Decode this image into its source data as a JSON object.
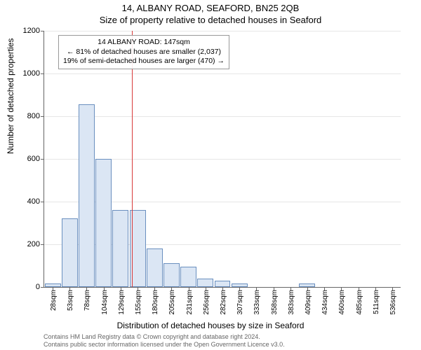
{
  "titles": {
    "address": "14, ALBANY ROAD, SEAFORD, BN25 2QB",
    "subtitle": "Size of property relative to detached houses in Seaford"
  },
  "axis": {
    "ylabel": "Number of detached properties",
    "xlabel": "Distribution of detached houses by size in Seaford",
    "ylim": [
      0,
      1200
    ],
    "yticks": [
      0,
      200,
      400,
      600,
      800,
      1000,
      1200
    ],
    "grid_color": "#e6e6e6",
    "axis_color": "#666666",
    "xticks": [
      "28sqm",
      "53sqm",
      "78sqm",
      "104sqm",
      "129sqm",
      "155sqm",
      "180sqm",
      "205sqm",
      "231sqm",
      "256sqm",
      "282sqm",
      "307sqm",
      "333sqm",
      "358sqm",
      "383sqm",
      "409sqm",
      "434sqm",
      "460sqm",
      "485sqm",
      "511sqm",
      "536sqm"
    ]
  },
  "hist": {
    "type": "histogram",
    "bins": 21,
    "values": [
      15,
      320,
      855,
      600,
      360,
      360,
      180,
      110,
      95,
      40,
      30,
      15,
      0,
      0,
      0,
      15,
      0,
      0,
      0,
      0,
      0
    ],
    "bar_fill": "#dbe6f4",
    "bar_stroke": "#6a8fbf",
    "bar_width": 0.95,
    "background_color": "#ffffff"
  },
  "marker": {
    "property_sqm": 147,
    "line_color": "#d93a3a",
    "annotation": {
      "line1": "14 ALBANY ROAD: 147sqm",
      "line2": "← 81% of detached houses are smaller (2,037)",
      "line3": "19% of semi-detached houses are larger (470) →",
      "box_border": "#999999",
      "box_bg": "rgba(255,255,255,0.9)",
      "font_size": 10.5
    }
  },
  "attribution": {
    "line1": "Contains HM Land Registry data © Crown copyright and database right 2024.",
    "line2": "Contains public sector information licensed under the Open Government Licence v3.0."
  },
  "label_fontsize": 12,
  "tick_fontsize": 11
}
